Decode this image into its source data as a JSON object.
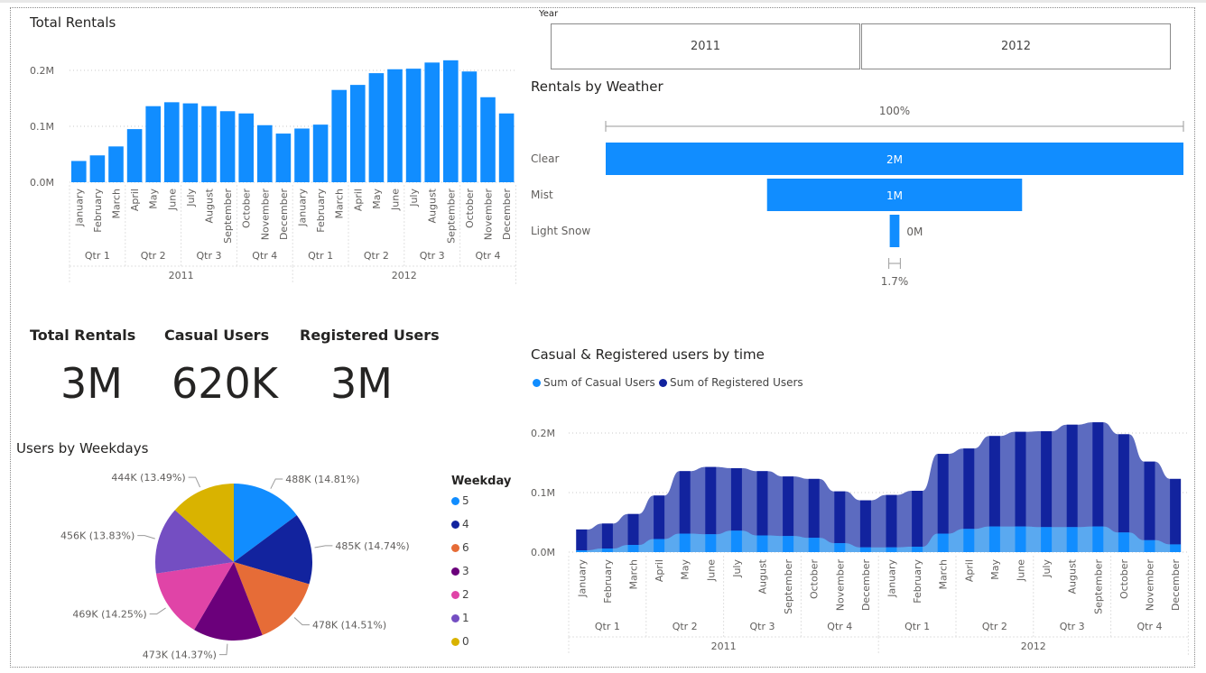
{
  "colors": {
    "primary": "#118dff",
    "dark": "#12239e",
    "band": "#5c6bc0",
    "grid": "#c8c8c8",
    "text": "#605e5c"
  },
  "total_rentals_chart": {
    "title": "Total Rentals"
  },
  "slicer": {
    "label": "Year",
    "options": [
      "2011",
      "2012"
    ]
  },
  "weather_chart": {
    "title": "Rentals by Weather"
  },
  "kpis": [
    {
      "title": "Total Rentals",
      "value": "3M"
    },
    {
      "title": "Casual Users",
      "value": "620K"
    },
    {
      "title": "Registered Users",
      "value": "3M"
    }
  ],
  "weekday_chart": {
    "title": "Users by Weekdays",
    "legend_title": "Weekday"
  },
  "time_chart": {
    "title": "Casual & Registered users by time",
    "legend": [
      "Sum of Casual Users",
      "Sum of Registered Users"
    ]
  },
  "chart_data": [
    {
      "type": "bar",
      "title": "Total Rentals",
      "categories": [
        "January",
        "February",
        "March",
        "April",
        "May",
        "June",
        "July",
        "August",
        "September",
        "October",
        "November",
        "December",
        "January",
        "February",
        "March",
        "April",
        "May",
        "June",
        "July",
        "August",
        "September",
        "October",
        "November",
        "December"
      ],
      "quarters": [
        "Qtr 1",
        "Qtr 2",
        "Qtr 3",
        "Qtr 4",
        "Qtr 1",
        "Qtr 2",
        "Qtr 3",
        "Qtr 4"
      ],
      "years": [
        "2011",
        "2012"
      ],
      "values": [
        38000,
        48000,
        64000,
        95000,
        136000,
        143000,
        141000,
        136000,
        127000,
        123000,
        102000,
        87000,
        96000,
        103000,
        165000,
        174000,
        195000,
        202000,
        203000,
        214000,
        218000,
        198000,
        152000,
        123000
      ],
      "y_ticks": [
        "0.0M",
        "0.1M",
        "0.2M"
      ],
      "ylim": [
        0,
        230000
      ]
    },
    {
      "type": "bar",
      "title": "Rentals by Weather",
      "categories": [
        "Clear",
        "Mist",
        "Light Snow"
      ],
      "values": [
        2257952,
        996858,
        37869
      ],
      "data_labels": [
        "2M",
        "1M",
        "0M"
      ],
      "top_label": "100%",
      "bottom_label": "1.7%"
    },
    {
      "type": "pie",
      "title": "Users by Weekdays",
      "legend_title": "Weekday",
      "slices": [
        {
          "label": "5",
          "value": 488,
          "data_label": "488K (14.81%)",
          "color": "#118dff"
        },
        {
          "label": "4",
          "value": 485,
          "data_label": "485K (14.74%)",
          "color": "#12239e"
        },
        {
          "label": "6",
          "value": 478,
          "data_label": "478K (14.51%)",
          "color": "#e66c37"
        },
        {
          "label": "3",
          "value": 473,
          "data_label": "473K (14.37%)",
          "color": "#6b007b"
        },
        {
          "label": "2",
          "value": 469,
          "data_label": "469K (14.25%)",
          "color": "#e044a7"
        },
        {
          "label": "1",
          "value": 456,
          "data_label": "456K (13.83%)",
          "color": "#744ec2"
        },
        {
          "label": "0",
          "value": 444,
          "data_label": "444K (13.49%)",
          "color": "#d9b300"
        }
      ]
    },
    {
      "type": "area",
      "title": "Casual & Registered users by time",
      "categories": [
        "January",
        "February",
        "March",
        "April",
        "May",
        "June",
        "July",
        "August",
        "September",
        "October",
        "November",
        "December",
        "January",
        "February",
        "March",
        "April",
        "May",
        "June",
        "July",
        "August",
        "September",
        "October",
        "November",
        "December"
      ],
      "quarters": [
        "Qtr 1",
        "Qtr 2",
        "Qtr 3",
        "Qtr 4",
        "Qtr 1",
        "Qtr 2",
        "Qtr 3",
        "Qtr 4"
      ],
      "years": [
        "2011",
        "2012"
      ],
      "series": [
        {
          "name": "Sum of Casual Users",
          "values": [
            3000,
            6000,
            12000,
            22000,
            31000,
            30000,
            36000,
            28000,
            27000,
            24000,
            15000,
            8000,
            8000,
            9000,
            31000,
            39000,
            43000,
            43000,
            42000,
            42000,
            43000,
            33000,
            20000,
            13000
          ]
        },
        {
          "name": "Sum of Registered Users",
          "values": [
            35000,
            42000,
            52000,
            73000,
            105000,
            113000,
            105000,
            108000,
            100000,
            99000,
            87000,
            79000,
            88000,
            94000,
            134000,
            135000,
            152000,
            159000,
            161000,
            172000,
            175000,
            165000,
            132000,
            110000
          ]
        }
      ],
      "y_ticks": [
        "0.0M",
        "0.1M",
        "0.2M"
      ],
      "ylim": [
        0,
        230000
      ]
    }
  ]
}
